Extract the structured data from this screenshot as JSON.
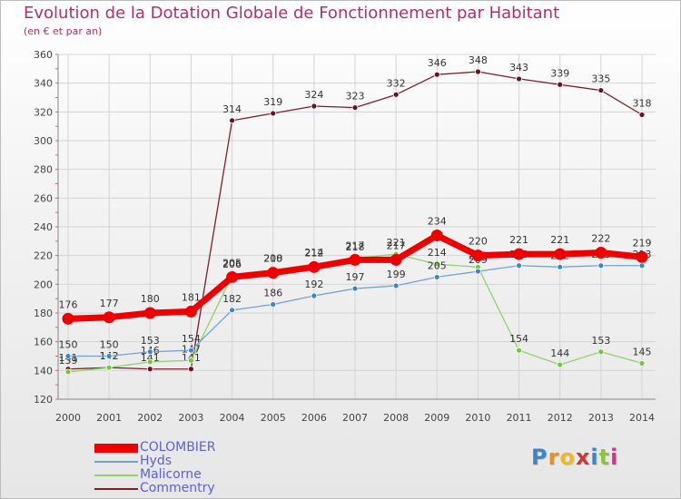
{
  "title": "Evolution de la Dotation Globale de Fonctionnement par Habitant",
  "subtitle": "(en € et par an)",
  "logo": {
    "text": "Proxiti",
    "colors": [
      "#3a86c8",
      "#e8901e",
      "#f0b820",
      "#c83a3a",
      "#3a86c8",
      "#8ac832",
      "#c83a8a"
    ]
  },
  "chart_data": {
    "type": "line",
    "x": [
      2000,
      2001,
      2002,
      2003,
      2004,
      2005,
      2006,
      2007,
      2008,
      2009,
      2010,
      2011,
      2012,
      2013,
      2014
    ],
    "ylim": [
      120,
      360
    ],
    "yticks": [
      120,
      140,
      160,
      180,
      200,
      220,
      240,
      260,
      280,
      300,
      320,
      340,
      360
    ],
    "grid": true,
    "title": "Evolution de la Dotation Globale de Fonctionnement par Habitant",
    "ylabel": "(en € et par an)",
    "xlabel": "",
    "legend_position": "bottom-left",
    "series": [
      {
        "name": "Commentry",
        "color": "#7a1f2b",
        "dot": "#6a1020",
        "values": [
          141,
          142,
          141,
          141,
          314,
          319,
          324,
          323,
          332,
          346,
          348,
          343,
          339,
          335,
          318
        ],
        "label_above": true
      },
      {
        "name": "Malicorne",
        "color": "#8ed46a",
        "dot": "#6cc83c",
        "values": [
          139,
          142,
          146,
          147,
          206,
          210,
          214,
          218,
          221,
          214,
          212,
          154,
          144,
          153,
          145
        ],
        "label_above": true
      },
      {
        "name": "Hyds",
        "color": "#6fa3cf",
        "dot": "#3a86c8",
        "values": [
          150,
          150,
          153,
          154,
          182,
          186,
          192,
          197,
          199,
          205,
          209,
          213,
          212,
          213,
          213
        ],
        "label_above": true
      },
      {
        "name": "COLOMBIER",
        "color": "#ee0000",
        "dot": "#ee0000",
        "values": [
          176,
          177,
          180,
          181,
          205,
          208,
          212,
          217,
          217,
          234,
          220,
          221,
          221,
          222,
          219
        ],
        "label_above": true
      }
    ],
    "legend_order": [
      "COLOMBIER",
      "Hyds",
      "Malicorne",
      "Commentry"
    ]
  }
}
